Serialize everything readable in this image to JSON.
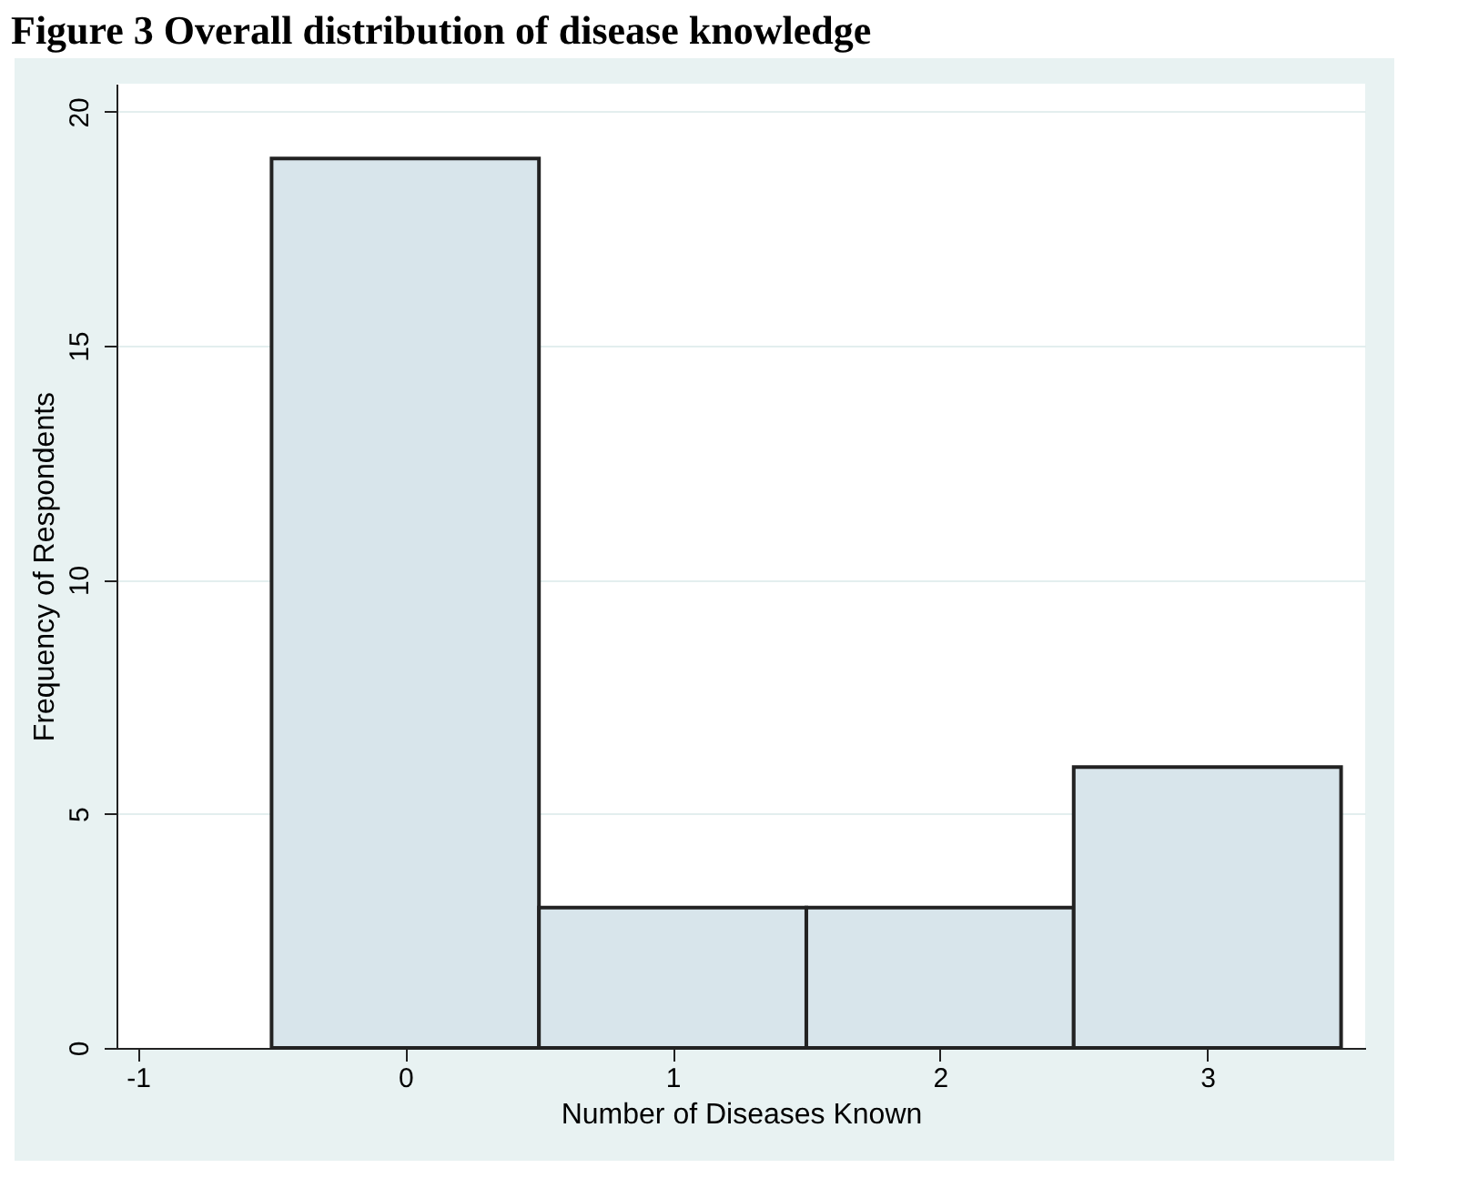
{
  "chart_data": {
    "type": "histogram",
    "title": "Figure 3 Overall distribution of disease knowledge",
    "xlabel": "Number of Diseases Known",
    "ylabel": "Frequency of Respondents",
    "bins": [
      -0.5,
      0.5,
      1.5,
      2.5,
      3.5
    ],
    "values": [
      19,
      3,
      3,
      6
    ],
    "color": "#d8e5eb",
    "xlim": [
      -1.08,
      3.59
    ],
    "xticks": [
      -1,
      0,
      1,
      2,
      3
    ],
    "ylim": [
      0,
      20.6
    ],
    "yticks": [
      0,
      5,
      10,
      15,
      20
    ],
    "grid": "y"
  }
}
